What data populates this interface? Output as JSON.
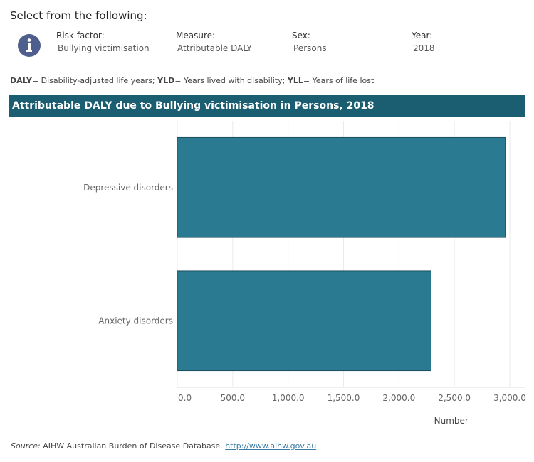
{
  "header": {
    "title": "Select from the following:"
  },
  "filters": [
    {
      "label": "Risk factor:",
      "value": "Bullying victimisation"
    },
    {
      "label": "Measure:",
      "value": "Attributable DALY"
    },
    {
      "label": "Sex:",
      "value": "Persons"
    },
    {
      "label": "Year:",
      "value": "2018"
    }
  ],
  "note": [
    {
      "term": "DALY",
      "definition": "= Disability-adjusted life years;"
    },
    {
      "term": "YLD",
      "definition": "= Years lived with disability;"
    },
    {
      "term": "YLL",
      "definition": "= Years of life lost"
    }
  ],
  "chart_data": {
    "type": "hbar",
    "title": "Attributable DALY due to Bullying victimisation in Persons, 2018",
    "categories": [
      "Depressive disorders",
      "Anxiety disorders"
    ],
    "values": [
      2960,
      2290
    ],
    "color": "#2a7b92",
    "xlabel": "Number",
    "xlim": [
      0,
      3135
    ],
    "xticks": [
      {
        "value": 0,
        "label": "0.0"
      },
      {
        "value": 500,
        "label": "500.0"
      },
      {
        "value": 1000,
        "label": "1,000.0"
      },
      {
        "value": 1500,
        "label": "1,500.0"
      },
      {
        "value": 2000,
        "label": "2,000.0"
      },
      {
        "value": 2500,
        "label": "2,500.0"
      },
      {
        "value": 3000,
        "label": "3,000.0"
      }
    ],
    "grid": true
  },
  "source": {
    "label": "Source:",
    "text": "AIHW Australian Burden of Disease Database.",
    "link": "http://www.aihw.gov.au"
  }
}
